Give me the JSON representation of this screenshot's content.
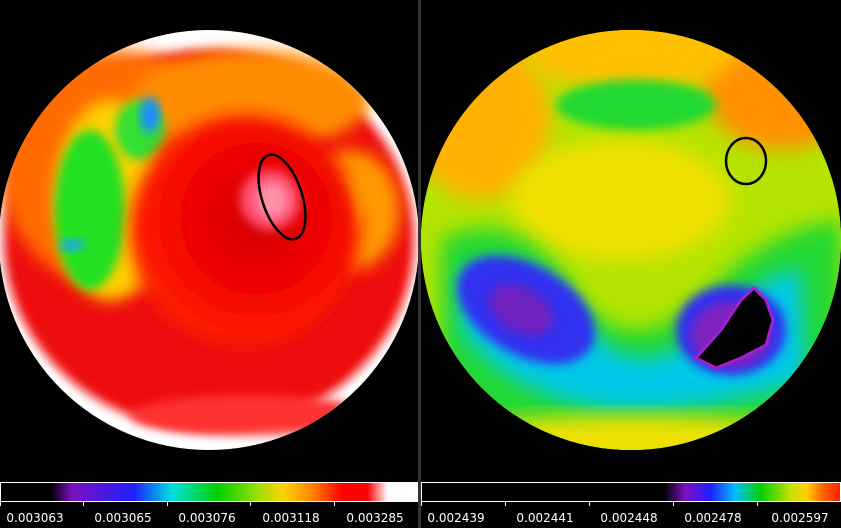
{
  "left_map": {
    "colorbar_ticks": [
      "0.003063",
      "0.003065",
      "0.003076",
      "0.003118",
      "0.003285"
    ],
    "colors": {
      "low": "#000000",
      "mid": "#00e000",
      "high": "#ff0000",
      "max": "#ffffff"
    }
  },
  "right_map": {
    "colorbar_ticks": [
      "0.002439",
      "0.002441",
      "0.002448",
      "0.002478",
      "0.002597"
    ],
    "colors": {
      "low": "#000000",
      "mid": "#00e000",
      "high": "#ff4000"
    }
  }
}
